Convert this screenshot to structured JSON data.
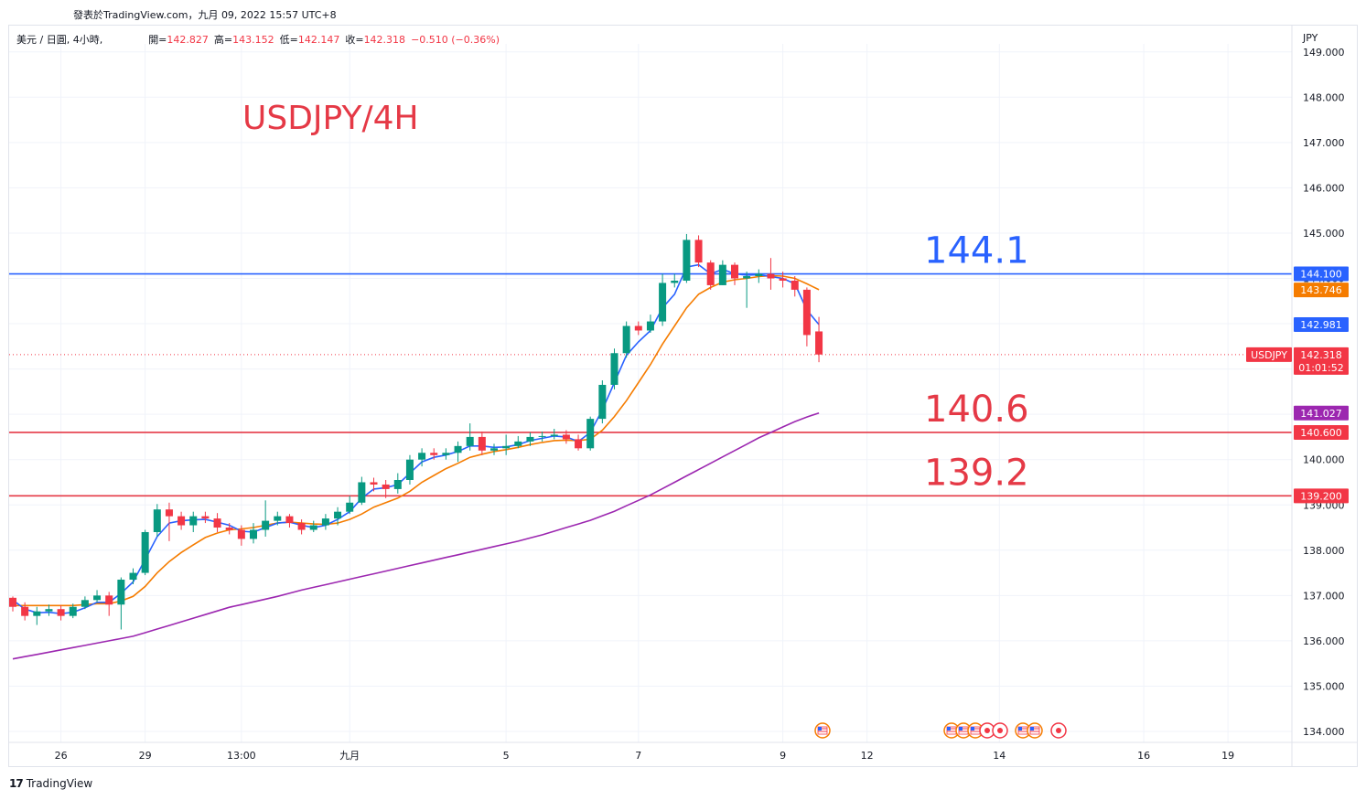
{
  "top_caption": "發表於TradingView.com，九月 09, 2022 15:57 UTC+8",
  "legend": {
    "symbol": "美元 / 日圓, 4小時,",
    "open_label": "開=",
    "open": "142.827",
    "high_label": "高=",
    "high": "143.152",
    "low_label": "低=",
    "low": "142.147",
    "close_label": "收=",
    "close": "142.318",
    "change": "−0.510 (−0.36%)"
  },
  "brand": {
    "logo": "17",
    "name": "TradingView"
  },
  "colors": {
    "up": "#089981",
    "down": "#f23645",
    "ma_fast": "#2962ff",
    "ma_mid": "#f57c00",
    "ma_slow": "#9c27b0",
    "level_blue": "#2962ff",
    "level_red": "#e53946",
    "grid": "#f0f3fa",
    "axis_text": "#131722"
  },
  "chart_data": {
    "type": "candlestick",
    "title": "USDJPY/4H",
    "currency": "JPY",
    "grid": true,
    "ylim": [
      133.7,
      149.1
    ],
    "y_ticks": [
      "134.000",
      "135.000",
      "136.000",
      "137.000",
      "138.000",
      "139.000",
      "140.000",
      "141.000",
      "142.000",
      "143.000",
      "144.000",
      "145.000",
      "146.000",
      "147.000",
      "148.000",
      "149.000"
    ],
    "x_ticks": [
      {
        "label": "26",
        "i": 4
      },
      {
        "label": "29",
        "i": 11
      },
      {
        "label": "13:00",
        "i": 19
      },
      {
        "label": "九月",
        "i": 28
      },
      {
        "label": "5",
        "i": 41
      },
      {
        "label": "7",
        "i": 52
      },
      {
        "label": "9",
        "i": 64
      },
      {
        "label": "12",
        "i": 71
      },
      {
        "label": "14",
        "i": 82
      },
      {
        "label": "16",
        "i": 94
      },
      {
        "label": "19",
        "i": 101
      }
    ],
    "candles": [
      [
        136.95,
        136.75,
        136.98,
        136.65
      ],
      [
        136.75,
        136.55,
        136.85,
        136.45
      ],
      [
        136.55,
        136.65,
        136.75,
        136.35
      ],
      [
        136.65,
        136.7,
        136.8,
        136.55
      ],
      [
        136.7,
        136.55,
        136.78,
        136.45
      ],
      [
        136.55,
        136.75,
        136.82,
        136.5
      ],
      [
        136.75,
        136.9,
        136.98,
        136.7
      ],
      [
        136.9,
        137.0,
        137.12,
        136.85
      ],
      [
        137.0,
        136.8,
        137.08,
        136.55
      ],
      [
        136.8,
        137.35,
        137.4,
        136.25
      ],
      [
        137.35,
        137.5,
        137.6,
        137.25
      ],
      [
        137.5,
        138.4,
        138.45,
        137.45
      ],
      [
        138.4,
        138.9,
        139.02,
        138.3
      ],
      [
        138.9,
        138.75,
        139.05,
        138.2
      ],
      [
        138.75,
        138.55,
        138.85,
        138.45
      ],
      [
        138.55,
        138.75,
        138.85,
        138.4
      ],
      [
        138.75,
        138.7,
        138.85,
        138.6
      ],
      [
        138.7,
        138.5,
        138.82,
        138.4
      ],
      [
        138.5,
        138.45,
        138.6,
        138.35
      ],
      [
        138.45,
        138.25,
        138.55,
        138.1
      ],
      [
        138.25,
        138.45,
        138.6,
        138.15
      ],
      [
        138.45,
        138.65,
        139.1,
        138.3
      ],
      [
        138.65,
        138.75,
        138.85,
        138.55
      ],
      [
        138.75,
        138.6,
        138.8,
        138.5
      ],
      [
        138.6,
        138.45,
        138.68,
        138.35
      ],
      [
        138.45,
        138.55,
        138.65,
        138.4
      ],
      [
        138.55,
        138.7,
        138.8,
        138.45
      ],
      [
        138.7,
        138.85,
        138.95,
        138.55
      ],
      [
        138.85,
        139.05,
        139.2,
        138.8
      ],
      [
        139.05,
        139.5,
        139.62,
        139.0
      ],
      [
        139.5,
        139.45,
        139.6,
        139.3
      ],
      [
        139.45,
        139.35,
        139.55,
        139.15
      ],
      [
        139.35,
        139.55,
        139.7,
        139.25
      ],
      [
        139.55,
        140.0,
        140.1,
        139.45
      ],
      [
        140.0,
        140.15,
        140.25,
        139.85
      ],
      [
        140.15,
        140.1,
        140.25,
        140.0
      ],
      [
        140.1,
        140.15,
        140.25,
        140.0
      ],
      [
        140.15,
        140.3,
        140.4,
        139.95
      ],
      [
        140.3,
        140.5,
        140.8,
        140.2
      ],
      [
        140.5,
        140.2,
        140.62,
        140.1
      ],
      [
        140.2,
        140.25,
        140.35,
        140.1
      ],
      [
        140.25,
        140.3,
        140.55,
        140.1
      ],
      [
        140.3,
        140.4,
        140.52,
        140.25
      ],
      [
        140.4,
        140.5,
        140.6,
        140.3
      ],
      [
        140.5,
        140.52,
        140.62,
        140.4
      ],
      [
        140.52,
        140.55,
        140.68,
        140.45
      ],
      [
        140.55,
        140.45,
        140.65,
        140.35
      ],
      [
        140.45,
        140.25,
        140.55,
        140.2
      ],
      [
        140.25,
        140.9,
        140.95,
        140.2
      ],
      [
        140.9,
        141.65,
        141.75,
        140.8
      ],
      [
        141.65,
        142.35,
        142.45,
        141.55
      ],
      [
        142.35,
        142.95,
        143.05,
        142.25
      ],
      [
        142.95,
        142.85,
        143.05,
        142.75
      ],
      [
        142.85,
        143.05,
        143.2,
        142.8
      ],
      [
        143.05,
        143.9,
        144.1,
        142.95
      ],
      [
        143.9,
        143.95,
        144.1,
        143.8
      ],
      [
        143.95,
        144.85,
        144.98,
        143.9
      ],
      [
        144.85,
        144.35,
        144.95,
        144.25
      ],
      [
        144.35,
        143.85,
        144.4,
        143.75
      ],
      [
        143.85,
        144.3,
        144.4,
        143.85
      ],
      [
        144.3,
        144.0,
        144.35,
        143.85
      ],
      [
        144.0,
        144.05,
        144.15,
        143.35
      ],
      [
        144.05,
        144.1,
        144.2,
        143.9
      ],
      [
        144.1,
        144.0,
        144.45,
        143.75
      ],
      [
        144.0,
        143.95,
        144.15,
        143.8
      ],
      [
        143.95,
        143.75,
        144.05,
        143.6
      ],
      [
        143.75,
        142.75,
        143.8,
        142.5
      ],
      [
        142.83,
        142.32,
        143.15,
        142.15
      ]
    ],
    "ma_fast": [
      136.9,
      136.7,
      136.62,
      136.63,
      136.6,
      136.63,
      136.73,
      136.85,
      136.85,
      137.05,
      137.3,
      137.8,
      138.3,
      138.6,
      138.65,
      138.67,
      138.68,
      138.62,
      138.55,
      138.42,
      138.4,
      138.5,
      138.6,
      138.62,
      138.55,
      138.5,
      138.55,
      138.68,
      138.85,
      139.15,
      139.35,
      139.38,
      139.45,
      139.7,
      139.95,
      140.05,
      140.1,
      140.18,
      140.3,
      140.3,
      140.27,
      140.28,
      140.33,
      140.42,
      140.47,
      140.52,
      140.5,
      140.4,
      140.6,
      141.1,
      141.7,
      142.3,
      142.6,
      142.85,
      143.35,
      143.65,
      144.25,
      144.3,
      144.1,
      144.2,
      144.1,
      144.07,
      144.08,
      144.04,
      144.0,
      143.88,
      143.3,
      142.98
    ],
    "ma_mid": [
      136.78,
      136.78,
      136.78,
      136.78,
      136.78,
      136.78,
      136.8,
      136.82,
      136.82,
      136.88,
      136.98,
      137.2,
      137.5,
      137.75,
      137.95,
      138.12,
      138.28,
      138.38,
      138.45,
      138.47,
      138.5,
      138.55,
      138.6,
      138.62,
      138.6,
      138.58,
      138.57,
      138.6,
      138.68,
      138.8,
      138.95,
      139.05,
      139.15,
      139.3,
      139.5,
      139.65,
      139.8,
      139.92,
      140.05,
      140.12,
      140.18,
      140.22,
      140.27,
      140.33,
      140.38,
      140.42,
      140.43,
      140.42,
      140.45,
      140.65,
      140.95,
      141.3,
      141.7,
      142.1,
      142.55,
      142.95,
      143.35,
      143.65,
      143.8,
      143.92,
      143.97,
      144.0,
      144.04,
      144.06,
      144.05,
      144.0,
      143.88,
      143.75
    ],
    "ma_slow": [
      135.6,
      135.65,
      135.7,
      135.75,
      135.8,
      135.85,
      135.9,
      135.95,
      136.0,
      136.05,
      136.1,
      136.18,
      136.26,
      136.34,
      136.42,
      136.5,
      136.58,
      136.66,
      136.74,
      136.8,
      136.86,
      136.92,
      136.98,
      137.05,
      137.12,
      137.18,
      137.24,
      137.3,
      137.36,
      137.42,
      137.48,
      137.54,
      137.6,
      137.66,
      137.72,
      137.78,
      137.84,
      137.9,
      137.96,
      138.02,
      138.08,
      138.14,
      138.2,
      138.27,
      138.34,
      138.42,
      138.5,
      138.58,
      138.66,
      138.76,
      138.86,
      138.98,
      139.1,
      139.22,
      139.36,
      139.5,
      139.64,
      139.78,
      139.92,
      140.06,
      140.2,
      140.34,
      140.48,
      140.6,
      140.72,
      140.84,
      140.94,
      141.03
    ],
    "levels": [
      {
        "value": 144.1,
        "label": "144.1",
        "color": "#2962ff"
      },
      {
        "value": 140.6,
        "label": "140.6",
        "color": "#e53946"
      },
      {
        "value": 139.2,
        "label": "139.2",
        "color": "#e53946"
      }
    ],
    "price_tags": [
      {
        "value": 144.1,
        "text": "144.100",
        "color": "#2962ff"
      },
      {
        "value": 143.746,
        "text": "143.746",
        "color": "#f57c00"
      },
      {
        "value": 142.981,
        "text": "142.981",
        "color": "#2962ff"
      },
      {
        "value": 141.027,
        "text": "141.027",
        "color": "#9c27b0"
      },
      {
        "value": 140.6,
        "text": "140.600",
        "color": "#f23645"
      },
      {
        "value": 139.2,
        "text": "139.200",
        "color": "#f23645"
      }
    ],
    "last_price": {
      "value": 142.318,
      "symbol": "USDJPY",
      "price": "142.318",
      "countdown": "01:01:52",
      "color": "#f23645"
    }
  }
}
